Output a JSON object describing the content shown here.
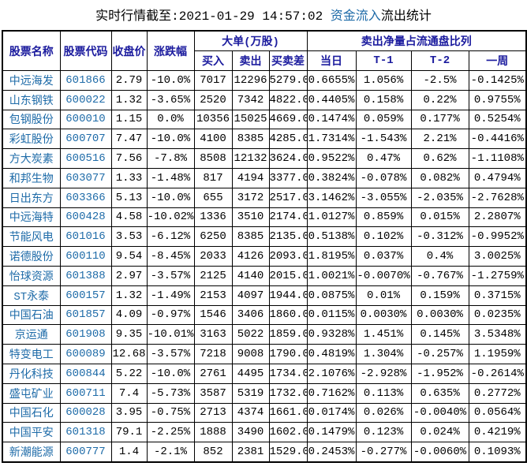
{
  "title": {
    "prefix": "实时行情截至:2021-01-29 14:57:02 ",
    "highlight": "资金流入",
    "suffix": "流出统计"
  },
  "colors": {
    "header_text": "#1b1b9e",
    "stock_link": "#1e6ba8",
    "grid_border": "#000000",
    "background": "#ffffff",
    "body_text": "#000000"
  },
  "table": {
    "headers": {
      "stock_name": "股票名称",
      "stock_code": "股票代码",
      "close_price": "收盘价",
      "change_pct": "涨跌幅",
      "big_orders_group": "大单(万股)",
      "buy": "买入",
      "sell": "卖出",
      "buy_sell_diff": "买卖差",
      "net_sell_group": "卖出净量占流通盘比列",
      "today": "当日",
      "t1": "T-1",
      "t2": "T-2",
      "week": "一周"
    },
    "rows": [
      [
        "中远海发",
        "601866",
        "2.79",
        "-10.0%",
        "7017",
        "12296",
        "5279.0",
        "0.6655%",
        "1.056%",
        "-2.5%",
        "-0.1425%"
      ],
      [
        "山东钢铁",
        "600022",
        "1.32",
        "-3.65%",
        "2520",
        "7342",
        "4822.0",
        "0.4405%",
        "0.158%",
        "0.22%",
        "0.9755%"
      ],
      [
        "包钢股份",
        "600010",
        "1.15",
        "0.0%",
        "10356",
        "15025",
        "4669.0",
        "0.1474%",
        "0.059%",
        "0.177%",
        "0.5254%"
      ],
      [
        "彩虹股份",
        "600707",
        "7.47",
        "-10.0%",
        "4100",
        "8385",
        "4285.0",
        "1.7314%",
        "-1.543%",
        "2.21%",
        "-0.4416%"
      ],
      [
        "方大炭素",
        "600516",
        "7.56",
        "-7.8%",
        "8508",
        "12132",
        "3624.0",
        "0.9522%",
        "0.47%",
        "0.62%",
        "-1.1108%"
      ],
      [
        "和邦生物",
        "603077",
        "1.33",
        "-1.48%",
        "817",
        "4194",
        "3377.0",
        "0.3824%",
        "-0.078%",
        "0.082%",
        "0.4794%"
      ],
      [
        "日出东方",
        "603366",
        "5.13",
        "-10.0%",
        "655",
        "3172",
        "2517.0",
        "3.1462%",
        "-3.055%",
        "-2.035%",
        "-2.7628%"
      ],
      [
        "中远海特",
        "600428",
        "4.58",
        "-10.02%",
        "1336",
        "3510",
        "2174.0",
        "1.0127%",
        "0.859%",
        "0.015%",
        "2.2807%"
      ],
      [
        "节能风电",
        "601016",
        "3.53",
        "-6.12%",
        "6250",
        "8385",
        "2135.0",
        "0.5138%",
        "0.102%",
        "-0.312%",
        "-0.9952%"
      ],
      [
        "诺德股份",
        "600110",
        "9.54",
        "-8.45%",
        "2033",
        "4126",
        "2093.0",
        "1.8195%",
        "0.037%",
        "0.4%",
        "3.0025%"
      ],
      [
        "怡球资源",
        "601388",
        "2.97",
        "-3.57%",
        "2125",
        "4140",
        "2015.0",
        "1.0021%",
        "-0.0070%",
        "-0.767%",
        "-1.2759%"
      ],
      [
        "ST永泰",
        "600157",
        "1.32",
        "-1.49%",
        "2153",
        "4097",
        "1944.0",
        "0.0875%",
        "0.01%",
        "0.159%",
        "0.3715%"
      ],
      [
        "中国石油",
        "601857",
        "4.09",
        "-0.97%",
        "1546",
        "3406",
        "1860.0",
        "0.0115%",
        "0.0030%",
        "0.0030%",
        "0.0235%"
      ],
      [
        "京运通",
        "601908",
        "9.35",
        "-10.01%",
        "3163",
        "5022",
        "1859.0",
        "0.9328%",
        "1.451%",
        "0.145%",
        "3.5348%"
      ],
      [
        "特变电工",
        "600089",
        "12.68",
        "-3.57%",
        "7218",
        "9008",
        "1790.0",
        "0.4819%",
        "1.304%",
        "-0.257%",
        "1.1959%"
      ],
      [
        "丹化科技",
        "600844",
        "5.22",
        "-10.0%",
        "2761",
        "4495",
        "1734.0",
        "2.1076%",
        "-2.928%",
        "-1.952%",
        "-0.2614%"
      ],
      [
        "盛屯矿业",
        "600711",
        "7.4",
        "-5.73%",
        "3587",
        "5319",
        "1732.0",
        "0.7162%",
        "0.113%",
        "0.635%",
        "0.2772%"
      ],
      [
        "中国石化",
        "600028",
        "3.95",
        "-0.75%",
        "2713",
        "4374",
        "1661.0",
        "0.0174%",
        "0.026%",
        "-0.0040%",
        "0.0564%"
      ],
      [
        "中国平安",
        "601318",
        "79.1",
        "-2.25%",
        "1888",
        "3490",
        "1602.0",
        "0.1479%",
        "0.123%",
        "0.024%",
        "0.4219%"
      ],
      [
        "新潮能源",
        "600777",
        "1.4",
        "-2.1%",
        "852",
        "2381",
        "1529.0",
        "0.2453%",
        "-0.277%",
        "-0.0060%",
        "0.1093%"
      ]
    ]
  }
}
